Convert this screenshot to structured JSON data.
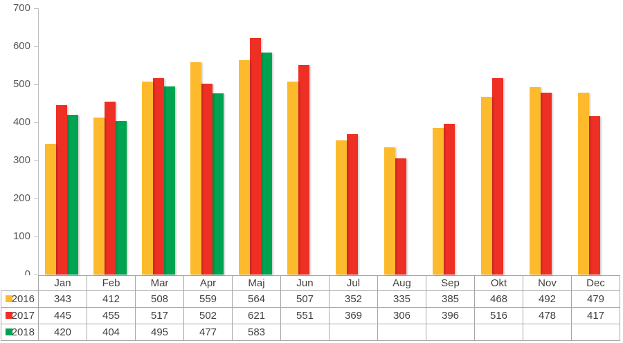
{
  "chart_data": {
    "type": "bar",
    "title": "",
    "xlabel": "",
    "ylabel": "",
    "categories": [
      "Jan",
      "Feb",
      "Mar",
      "Apr",
      "Maj",
      "Jun",
      "Jul",
      "Aug",
      "Sep",
      "Okt",
      "Nov",
      "Dec"
    ],
    "series": [
      {
        "name": "2016",
        "color": "#FDBA2D",
        "values": [
          343,
          412,
          508,
          559,
          564,
          507,
          352,
          335,
          385,
          468,
          492,
          479
        ]
      },
      {
        "name": "2017",
        "color": "#EE2F24",
        "values": [
          445,
          455,
          517,
          502,
          621,
          551,
          369,
          306,
          396,
          516,
          478,
          417
        ]
      },
      {
        "name": "2018",
        "color": "#00A351",
        "values": [
          420,
          404,
          495,
          477,
          583,
          null,
          null,
          null,
          null,
          null,
          null,
          null
        ]
      }
    ],
    "ylim": [
      0,
      700
    ],
    "ytick_interval": 100,
    "yticks": [
      "0",
      "100",
      "200",
      "300",
      "400",
      "500",
      "600",
      "700"
    ],
    "grid": false,
    "legend_position": "data-table-left"
  },
  "colors": {
    "background": "#FFFFFF",
    "axis_line": "#BFBFBF",
    "axis_label_text": "#595959",
    "table_border": "#A6A6A6",
    "table_text": "#404040"
  }
}
